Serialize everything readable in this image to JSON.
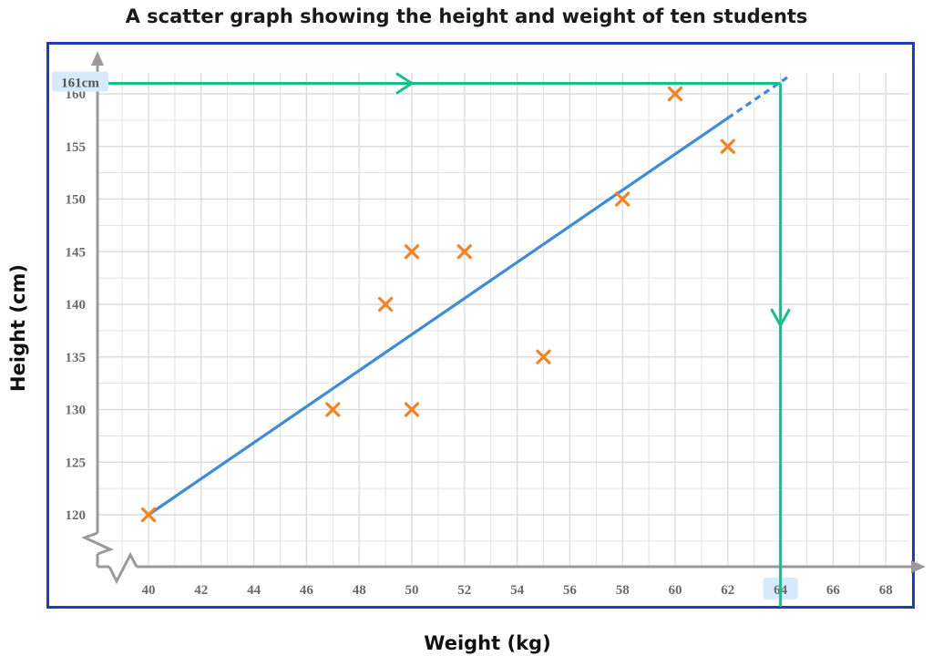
{
  "chart_data": {
    "type": "scatter",
    "title": "A scatter graph showing the height and weight of ten students",
    "xlabel": "Weight (kg)",
    "ylabel": "Height (cm)",
    "xlim": [
      38,
      69
    ],
    "ylim": [
      115,
      162
    ],
    "x_ticks": [
      40,
      42,
      44,
      46,
      48,
      50,
      52,
      54,
      56,
      58,
      60,
      62,
      64,
      66,
      68
    ],
    "y_ticks": [
      120,
      125,
      130,
      135,
      140,
      145,
      150,
      155,
      160
    ],
    "grid": true,
    "axis_breaks": true,
    "points": [
      {
        "x": 40,
        "y": 120
      },
      {
        "x": 47,
        "y": 130
      },
      {
        "x": 49,
        "y": 140
      },
      {
        "x": 50,
        "y": 145
      },
      {
        "x": 50,
        "y": 130
      },
      {
        "x": 52,
        "y": 145
      },
      {
        "x": 55,
        "y": 135
      },
      {
        "x": 58,
        "y": 150
      },
      {
        "x": 60,
        "y": 160
      },
      {
        "x": 62,
        "y": 155
      }
    ],
    "line_of_best_fit": {
      "solid": [
        [
          40,
          120
        ],
        [
          62,
          157.7
        ]
      ],
      "dashed": [
        [
          62,
          157.7
        ],
        [
          64.4,
          161.8
        ]
      ]
    },
    "reading": {
      "y_label": "161cm",
      "y_value": 161,
      "x_label": "64",
      "x_value": 64
    },
    "colors": {
      "points": "#f58220",
      "fit_line": "#3d8bdb",
      "reading_line": "#16c08a",
      "frame": "#1f3bbf",
      "grid": "#dcdcdc",
      "axis": "#9a9a9a",
      "highlight": "#d6eafc"
    }
  }
}
